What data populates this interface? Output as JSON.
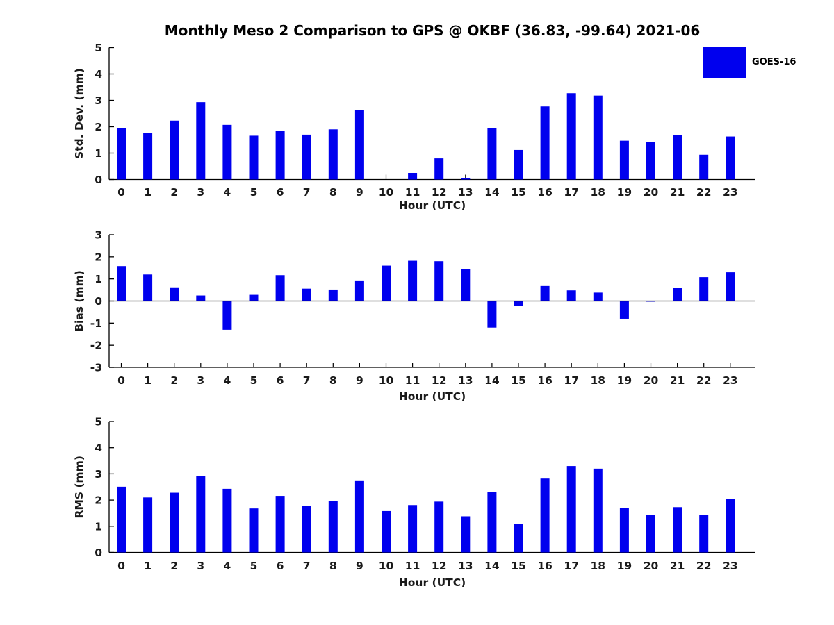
{
  "title": "Monthly Meso 2 Comparison to GPS @ OKBF (36.83, -99.64) 2021-06",
  "legend": {
    "label": "GOES-16",
    "swatch_color": "#0000EE"
  },
  "colors": {
    "bar": "#0000EE",
    "axis": "#000000",
    "tick_text": "#1a1a1a"
  },
  "chart_data": [
    {
      "type": "bar",
      "name": "stddev",
      "ylabel": "Std. Dev. (mm)",
      "xlabel": "Hour (UTC)",
      "legend": "GOES-16",
      "categories": [
        "0",
        "1",
        "2",
        "3",
        "4",
        "5",
        "6",
        "7",
        "8",
        "9",
        "10",
        "11",
        "12",
        "13",
        "14",
        "15",
        "16",
        "17",
        "18",
        "19",
        "20",
        "21",
        "22",
        "23"
      ],
      "values": [
        1.96,
        1.76,
        2.23,
        2.93,
        2.07,
        1.66,
        1.83,
        1.7,
        1.9,
        2.62,
        0.0,
        0.25,
        0.8,
        0.04,
        1.96,
        1.12,
        2.77,
        3.27,
        3.18,
        1.47,
        1.41,
        1.68,
        0.94,
        1.63
      ],
      "ylim": [
        0,
        5
      ],
      "yticks": [
        0,
        1,
        2,
        3,
        4,
        5
      ],
      "grid": false,
      "legend_position": "upper-right-outside"
    },
    {
      "type": "bar",
      "name": "bias",
      "ylabel": "Bias (mm)",
      "xlabel": "Hour (UTC)",
      "legend": "GOES-16",
      "categories": [
        "0",
        "1",
        "2",
        "3",
        "4",
        "5",
        "6",
        "7",
        "8",
        "9",
        "10",
        "11",
        "12",
        "13",
        "14",
        "15",
        "16",
        "17",
        "18",
        "19",
        "20",
        "21",
        "22",
        "23"
      ],
      "values": [
        1.58,
        1.2,
        0.62,
        0.25,
        -1.3,
        0.28,
        1.17,
        0.56,
        0.52,
        0.93,
        1.6,
        1.82,
        1.8,
        1.43,
        -1.2,
        -0.22,
        0.68,
        0.48,
        0.38,
        -0.8,
        -0.03,
        0.6,
        1.08,
        1.3
      ],
      "ylim": [
        -3,
        3
      ],
      "yticks": [
        -3,
        -2,
        -1,
        0,
        1,
        2,
        3
      ],
      "grid": false,
      "zero_line": true
    },
    {
      "type": "bar",
      "name": "rms",
      "ylabel": "RMS (mm)",
      "xlabel": "Hour (UTC)",
      "legend": "GOES-16",
      "categories": [
        "0",
        "1",
        "2",
        "3",
        "4",
        "5",
        "6",
        "7",
        "8",
        "9",
        "10",
        "11",
        "12",
        "13",
        "14",
        "15",
        "16",
        "17",
        "18",
        "19",
        "20",
        "21",
        "22",
        "23"
      ],
      "values": [
        2.51,
        2.1,
        2.28,
        2.93,
        2.43,
        1.68,
        2.16,
        1.78,
        1.96,
        2.75,
        1.58,
        1.81,
        1.94,
        1.38,
        2.3,
        1.1,
        2.82,
        3.3,
        3.2,
        1.7,
        1.42,
        1.73,
        1.42,
        2.05
      ],
      "ylim": [
        0,
        5
      ],
      "yticks": [
        0,
        1,
        2,
        3,
        4,
        5
      ],
      "grid": false
    }
  ]
}
